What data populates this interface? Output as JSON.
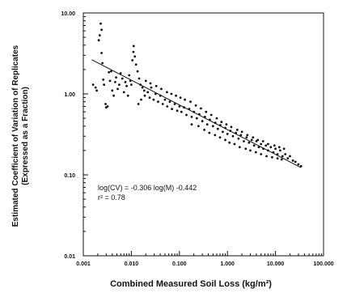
{
  "chart_data": {
    "type": "scatter",
    "xlabel": "Combined Measured Soil Loss (kg/m²)",
    "ylabel_line1": "Estimated Coefficient of Variation of Replicates",
    "ylabel_line2": "(Expressed as a Fraction)",
    "x_scale": "log",
    "y_scale": "log",
    "xlim": [
      0.001,
      100
    ],
    "ylim": [
      0.01,
      10
    ],
    "x_ticks": [
      "0.001",
      "0.010",
      "0.100",
      "1.000",
      "10.000",
      "100.000"
    ],
    "y_ticks": [
      "0.01",
      "0.10",
      "1.00",
      "10.00"
    ],
    "grid": false,
    "annotation": {
      "line1": "log(CV) = -0.306 log(M) -0.442",
      "line2": "r² = 0.78"
    },
    "fit_line": {
      "slope": -0.306,
      "intercept": -0.442,
      "x_range": [
        0.0015,
        34
      ]
    },
    "series": [
      {
        "points": [
          [
            0.0016,
            1.3
          ],
          [
            0.0018,
            1.2
          ],
          [
            0.0019,
            1.1
          ],
          [
            0.0021,
            4.6
          ],
          [
            0.0022,
            5.3
          ],
          [
            0.0023,
            7.4
          ],
          [
            0.0024,
            6.2
          ],
          [
            0.0024,
            3.2
          ],
          [
            0.0025,
            2.4
          ],
          [
            0.0026,
            1.5
          ],
          [
            0.0027,
            1.3
          ],
          [
            0.0029,
            0.75
          ],
          [
            0.003,
            0.68
          ],
          [
            0.0032,
            0.7
          ],
          [
            0.0034,
            1.85
          ],
          [
            0.0036,
            1.45
          ],
          [
            0.0038,
            1.9
          ],
          [
            0.004,
            1.1
          ],
          [
            0.0043,
            0.95
          ],
          [
            0.0046,
            1.4
          ],
          [
            0.0048,
            1.6
          ],
          [
            0.0052,
            1.15
          ],
          [
            0.0056,
            1.3
          ],
          [
            0.006,
            1.8
          ],
          [
            0.0065,
            1.55
          ],
          [
            0.007,
            1.05
          ],
          [
            0.0075,
            1.4
          ],
          [
            0.008,
            1.25
          ],
          [
            0.0085,
            0.95
          ],
          [
            0.009,
            1.7
          ],
          [
            0.0095,
            1.45
          ],
          [
            0.01,
            1.3
          ],
          [
            0.0105,
            2.6
          ],
          [
            0.011,
            3.3
          ],
          [
            0.0112,
            3.9
          ],
          [
            0.0118,
            2.9
          ],
          [
            0.0125,
            2.3
          ],
          [
            0.0135,
            1.9
          ],
          [
            0.0145,
            1.55
          ],
          [
            0.0155,
            1.3
          ],
          [
            0.017,
            1.2
          ],
          [
            0.0185,
            1.1
          ],
          [
            0.02,
            1.45
          ],
          [
            0.022,
            1.05
          ],
          [
            0.024,
            0.9
          ],
          [
            0.026,
            1.2
          ],
          [
            0.029,
            0.85
          ],
          [
            0.032,
            1.0
          ],
          [
            0.036,
            0.8
          ],
          [
            0.04,
            0.95
          ],
          [
            0.045,
            0.75
          ],
          [
            0.05,
            0.85
          ],
          [
            0.056,
            0.7
          ],
          [
            0.063,
            0.8
          ],
          [
            0.07,
            0.65
          ],
          [
            0.08,
            0.75
          ],
          [
            0.09,
            0.62
          ],
          [
            0.1,
            0.7
          ],
          [
            0.11,
            0.6
          ],
          [
            0.125,
            0.68
          ],
          [
            0.14,
            0.55
          ],
          [
            0.16,
            0.65
          ],
          [
            0.18,
            0.52
          ],
          [
            0.2,
            0.6
          ],
          [
            0.23,
            0.5
          ],
          [
            0.26,
            0.56
          ],
          [
            0.3,
            0.46
          ],
          [
            0.34,
            0.52
          ],
          [
            0.38,
            0.42
          ],
          [
            0.43,
            0.48
          ],
          [
            0.5,
            0.4
          ],
          [
            0.56,
            0.44
          ],
          [
            0.63,
            0.37
          ],
          [
            0.71,
            0.41
          ],
          [
            0.8,
            0.34
          ],
          [
            0.9,
            0.38
          ],
          [
            1.0,
            0.32
          ],
          [
            1.15,
            0.35
          ],
          [
            1.3,
            0.3
          ],
          [
            1.5,
            0.33
          ],
          [
            1.7,
            0.28
          ],
          [
            1.9,
            0.31
          ],
          [
            2.2,
            0.26
          ],
          [
            2.5,
            0.29
          ],
          [
            2.8,
            0.25
          ],
          [
            3.2,
            0.27
          ],
          [
            3.6,
            0.23
          ],
          [
            4.0,
            0.26
          ],
          [
            4.5,
            0.22
          ],
          [
            5.0,
            0.24
          ],
          [
            5.6,
            0.21
          ],
          [
            6.3,
            0.23
          ],
          [
            7.0,
            0.2
          ],
          [
            8.0,
            0.22
          ],
          [
            9.0,
            0.19
          ],
          [
            10.0,
            0.21
          ],
          [
            11.0,
            0.18
          ],
          [
            12.5,
            0.2
          ],
          [
            14.0,
            0.17
          ],
          [
            16.0,
            0.18
          ],
          [
            18.0,
            0.16
          ],
          [
            20.0,
            0.17
          ],
          [
            23.0,
            0.15
          ],
          [
            26.0,
            0.145
          ],
          [
            30.0,
            0.135
          ],
          [
            34.0,
            0.128
          ],
          [
            0.014,
            0.75
          ],
          [
            0.016,
            0.85
          ],
          [
            0.019,
            0.95
          ],
          [
            0.025,
            1.35
          ],
          [
            0.033,
            1.25
          ],
          [
            0.042,
            1.15
          ],
          [
            0.055,
            1.05
          ],
          [
            0.068,
            1.0
          ],
          [
            0.085,
            0.95
          ],
          [
            0.105,
            0.9
          ],
          [
            0.13,
            0.85
          ],
          [
            0.17,
            0.8
          ],
          [
            0.22,
            0.72
          ],
          [
            0.28,
            0.66
          ],
          [
            0.36,
            0.6
          ],
          [
            0.46,
            0.55
          ],
          [
            0.6,
            0.5
          ],
          [
            0.75,
            0.45
          ],
          [
            0.95,
            0.42
          ],
          [
            1.2,
            0.39
          ],
          [
            1.6,
            0.36
          ],
          [
            2.0,
            0.34
          ],
          [
            2.6,
            0.31
          ],
          [
            3.4,
            0.29
          ],
          [
            4.3,
            0.27
          ],
          [
            5.5,
            0.26
          ],
          [
            7.0,
            0.24
          ],
          [
            9.5,
            0.23
          ],
          [
            12.0,
            0.22
          ],
          [
            15.0,
            0.21
          ],
          [
            0.18,
            0.42
          ],
          [
            0.25,
            0.4
          ],
          [
            0.33,
            0.36
          ],
          [
            0.42,
            0.33
          ],
          [
            0.55,
            0.31
          ],
          [
            0.7,
            0.29
          ],
          [
            0.9,
            0.27
          ],
          [
            1.1,
            0.25
          ],
          [
            1.4,
            0.24
          ],
          [
            1.8,
            0.22
          ],
          [
            2.4,
            0.21
          ],
          [
            3.0,
            0.2
          ],
          [
            3.9,
            0.19
          ],
          [
            5.0,
            0.18
          ],
          [
            6.5,
            0.17
          ],
          [
            8.5,
            0.165
          ],
          [
            11.0,
            0.16
          ],
          [
            13.5,
            0.155
          ]
        ]
      }
    ]
  }
}
